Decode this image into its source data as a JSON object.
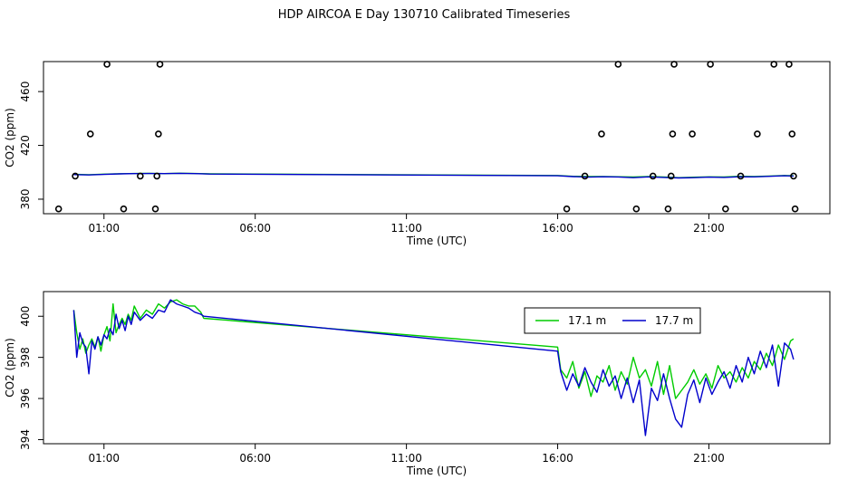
{
  "page": {
    "title": "HDP AIRCOA E  Day 130710  Calibrated Timeseries"
  },
  "chart_data": [
    {
      "type": "scatter",
      "title": "",
      "xlabel": "Time (UTC)",
      "ylabel": "CO2 (ppm)",
      "x_unit": "hours (UTC)",
      "xlim": [
        -1,
        25
      ],
      "ylim": [
        369.2,
        482.3
      ],
      "xticks": [
        1,
        6,
        11,
        16,
        21
      ],
      "xtick_labels": [
        "01:00",
        "06:00",
        "11:00",
        "16:00",
        "21:00"
      ],
      "yticks": [
        380,
        420,
        460
      ],
      "ytick_labels": [
        "380",
        "420",
        "460"
      ],
      "grid": false,
      "line_series": [
        {
          "color": "#00cc00",
          "x": [
            0,
            0.5,
            1,
            1.5,
            2,
            2.5,
            3,
            3.5,
            4,
            4.5,
            16,
            16.5,
            17,
            17.5,
            18,
            18.5,
            19,
            19.5,
            20,
            20.5,
            21,
            21.5,
            22,
            22.5,
            23,
            23.5,
            23.8
          ],
          "y": [
            398.5,
            398.2,
            398.6,
            398.9,
            399.1,
            399.2,
            399.0,
            399.3,
            399.1,
            398.8,
            397.6,
            397.0,
            396.8,
            396.9,
            396.7,
            396.5,
            396.8,
            396.5,
            396.0,
            396.3,
            396.6,
            396.5,
            397.0,
            396.9,
            397.2,
            397.6,
            397.4
          ]
        },
        {
          "color": "#0000cc",
          "x": [
            0,
            0.5,
            1,
            1.5,
            2,
            2.5,
            3,
            3.5,
            4,
            4.5,
            16,
            16.5,
            17,
            17.5,
            18,
            18.5,
            19,
            19.5,
            20,
            20.5,
            21,
            21.5,
            22,
            22.5,
            23,
            23.5,
            23.8
          ],
          "y": [
            398.3,
            398.0,
            398.4,
            398.8,
            399.0,
            399.1,
            399.0,
            399.2,
            399.0,
            398.7,
            397.4,
            396.8,
            396.4,
            396.7,
            396.5,
            396.0,
            396.6,
            396.2,
            395.8,
            396.0,
            396.4,
            396.2,
            396.7,
            396.6,
            397.0,
            397.4,
            397.2
          ]
        }
      ],
      "points": [
        {
          "x": -0.5,
          "y": 372.8
        },
        {
          "x": 0.05,
          "y": 397.2
        },
        {
          "x": 0.55,
          "y": 428.5
        },
        {
          "x": 1.1,
          "y": 480.3
        },
        {
          "x": 1.65,
          "y": 372.8
        },
        {
          "x": 2.2,
          "y": 397.2
        },
        {
          "x": 2.7,
          "y": 372.8
        },
        {
          "x": 2.75,
          "y": 397.2
        },
        {
          "x": 2.8,
          "y": 428.5
        },
        {
          "x": 2.85,
          "y": 480.3
        },
        {
          "x": 16.3,
          "y": 372.8
        },
        {
          "x": 16.9,
          "y": 397.2
        },
        {
          "x": 17.45,
          "y": 428.5
        },
        {
          "x": 18.0,
          "y": 480.3
        },
        {
          "x": 18.6,
          "y": 372.8
        },
        {
          "x": 19.15,
          "y": 397.2
        },
        {
          "x": 19.65,
          "y": 372.8
        },
        {
          "x": 19.75,
          "y": 397.2
        },
        {
          "x": 19.8,
          "y": 428.5
        },
        {
          "x": 19.85,
          "y": 480.3
        },
        {
          "x": 20.45,
          "y": 428.5
        },
        {
          "x": 21.05,
          "y": 480.3
        },
        {
          "x": 21.55,
          "y": 372.8
        },
        {
          "x": 22.05,
          "y": 397.2
        },
        {
          "x": 22.6,
          "y": 428.5
        },
        {
          "x": 23.15,
          "y": 480.3
        },
        {
          "x": 23.65,
          "y": 480.3
        },
        {
          "x": 23.75,
          "y": 428.5
        },
        {
          "x": 23.8,
          "y": 397.2
        },
        {
          "x": 23.85,
          "y": 372.8
        }
      ]
    },
    {
      "type": "line",
      "title": "",
      "xlabel": "Time (UTC)",
      "ylabel": "CO2 (ppm)",
      "x_unit": "hours (UTC)",
      "xlim": [
        -1,
        25
      ],
      "ylim": [
        393.8,
        401.2
      ],
      "xticks": [
        1,
        6,
        11,
        16,
        21
      ],
      "xtick_labels": [
        "01:00",
        "06:00",
        "11:00",
        "16:00",
        "21:00"
      ],
      "yticks": [
        394,
        396,
        398,
        400
      ],
      "ytick_labels": [
        "394",
        "396",
        "398",
        "400"
      ],
      "grid": false,
      "legend": {
        "placement": "top-right"
      },
      "series": [
        {
          "name": "17.1 m",
          "color": "#00cc00",
          "x": [
            0,
            0.1,
            0.2,
            0.3,
            0.4,
            0.5,
            0.6,
            0.7,
            0.8,
            0.9,
            1.0,
            1.1,
            1.2,
            1.3,
            1.4,
            1.5,
            1.6,
            1.7,
            1.8,
            1.9,
            2.0,
            2.2,
            2.4,
            2.6,
            2.8,
            3.0,
            3.2,
            3.4,
            3.6,
            3.8,
            4.0,
            4.2,
            4.3,
            16.0,
            16.1,
            16.3,
            16.5,
            16.7,
            16.9,
            17.1,
            17.3,
            17.5,
            17.7,
            17.9,
            18.1,
            18.3,
            18.5,
            18.7,
            18.9,
            19.1,
            19.3,
            19.5,
            19.7,
            19.9,
            20.1,
            20.3,
            20.5,
            20.7,
            20.9,
            21.1,
            21.3,
            21.5,
            21.7,
            21.9,
            22.1,
            22.3,
            22.5,
            22.7,
            22.9,
            23.1,
            23.3,
            23.5,
            23.7,
            23.8
          ],
          "y": [
            400.3,
            399.2,
            398.4,
            398.9,
            398.2,
            398.6,
            398.9,
            398.5,
            399.0,
            398.3,
            399.1,
            399.5,
            398.8,
            400.6,
            399.2,
            399.6,
            399.9,
            399.6,
            400.1,
            399.8,
            400.5,
            399.9,
            400.3,
            400.1,
            400.6,
            400.4,
            400.7,
            400.8,
            400.6,
            400.5,
            400.5,
            400.2,
            399.9,
            398.5,
            397.4,
            397.0,
            397.8,
            396.5,
            397.3,
            396.1,
            397.1,
            396.8,
            397.6,
            396.4,
            397.3,
            396.7,
            398.0,
            397.0,
            397.4,
            396.6,
            397.8,
            396.2,
            397.6,
            396.0,
            396.4,
            396.8,
            397.4,
            396.7,
            397.2,
            396.5,
            397.6,
            397.0,
            397.3,
            396.8,
            397.5,
            397.0,
            397.8,
            397.4,
            398.2,
            397.6,
            398.6,
            397.9,
            398.8,
            398.9
          ]
        },
        {
          "name": "17.7 m",
          "color": "#0000cc",
          "x": [
            0,
            0.1,
            0.2,
            0.3,
            0.4,
            0.5,
            0.6,
            0.7,
            0.8,
            0.9,
            1.0,
            1.1,
            1.2,
            1.3,
            1.4,
            1.5,
            1.6,
            1.7,
            1.8,
            1.9,
            2.0,
            2.2,
            2.4,
            2.6,
            2.8,
            3.0,
            3.2,
            3.4,
            3.6,
            3.8,
            4.0,
            4.2,
            4.3,
            16.0,
            16.1,
            16.3,
            16.5,
            16.7,
            16.9,
            17.1,
            17.3,
            17.5,
            17.7,
            17.9,
            18.1,
            18.3,
            18.5,
            18.7,
            18.9,
            19.1,
            19.3,
            19.5,
            19.7,
            19.9,
            20.1,
            20.3,
            20.5,
            20.7,
            20.9,
            21.1,
            21.3,
            21.5,
            21.7,
            21.9,
            22.1,
            22.3,
            22.5,
            22.7,
            22.9,
            23.1,
            23.3,
            23.5,
            23.7,
            23.8
          ],
          "y": [
            400.3,
            398.0,
            399.2,
            398.7,
            398.5,
            397.2,
            398.8,
            398.4,
            399.0,
            398.6,
            399.1,
            398.9,
            399.4,
            399.1,
            400.1,
            399.4,
            399.8,
            399.3,
            400.0,
            399.6,
            400.2,
            399.8,
            400.1,
            399.9,
            400.3,
            400.2,
            400.8,
            400.6,
            400.5,
            400.4,
            400.2,
            400.1,
            400.0,
            398.3,
            397.3,
            396.4,
            397.2,
            396.6,
            397.5,
            396.8,
            396.3,
            397.4,
            396.6,
            397.1,
            396.0,
            397.0,
            395.8,
            396.9,
            394.2,
            396.5,
            395.9,
            397.2,
            396.0,
            395.0,
            394.6,
            396.2,
            396.9,
            395.8,
            397.0,
            396.2,
            396.8,
            397.3,
            396.5,
            397.6,
            396.8,
            398.0,
            397.2,
            398.3,
            397.5,
            398.6,
            396.6,
            398.7,
            398.4,
            397.9
          ]
        }
      ]
    }
  ]
}
